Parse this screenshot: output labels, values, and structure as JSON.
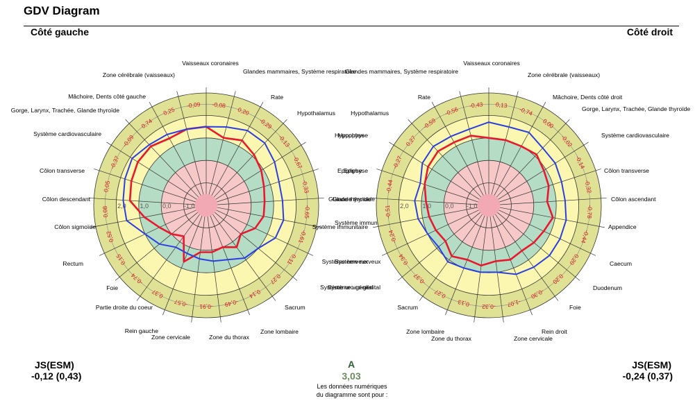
{
  "title": "GDV Diagram",
  "left_side_label": "Côté gauche",
  "right_side_label": "Côté droit",
  "left_stats": {
    "label": "JS(ESM)",
    "value": "-0,12 (0,43)"
  },
  "right_stats": {
    "label": "JS(ESM)",
    "value": "-0,24 (0,37)"
  },
  "center_label": "A",
  "center_value": "3,03",
  "note": [
    "Les données numériques",
    "du diagramme sont pour :"
  ],
  "chart_data": [
    {
      "type": "radar",
      "name": "Côté gauche",
      "rlim": [
        -2,
        3
      ],
      "ring_labels": [
        "2,0",
        "1,0",
        "0,0",
        "-1,0"
      ],
      "band_colors": [
        "#f7c8c8",
        "#b5dcc4",
        "#fbf6b0",
        "#dfe294"
      ],
      "line_colors": [
        "#e8192c",
        "#2b3fe0"
      ],
      "sectors": [
        {
          "label": "Vaisseaux coronaires",
          "value": "-0,08"
        },
        {
          "label": "Glandes mammaires, Système respiratoire",
          "value": "0,20"
        },
        {
          "label": "Rate",
          "value": "-0,29"
        },
        {
          "label": "Hypothalamus",
          "value": "-0,13"
        },
        {
          "label": "Hypophyse",
          "value": "-0,67"
        },
        {
          "label": "Epiphyse",
          "value": "-0,33"
        },
        {
          "label": "Glande thyroïde",
          "value": "-0,65"
        },
        {
          "label": "Système immunitaire",
          "value": "-0,61"
        },
        {
          "label": "Système nerveux",
          "value": "0,11"
        },
        {
          "label": "Système uro-génital",
          "value": "0,27"
        },
        {
          "label": "Sacrum",
          "value": "0,14"
        },
        {
          "label": "Zone lombaire",
          "value": "-0,49"
        },
        {
          "label": "Zone du thorax",
          "value": "-0,91"
        },
        {
          "label": "Zone cervicale",
          "value": "-0,57"
        },
        {
          "label": "Rein gauche",
          "value": "0,37"
        },
        {
          "label": "Partie droite du coeur",
          "value": "-0,74"
        },
        {
          "label": "Foie",
          "value": "0,15"
        },
        {
          "label": "Rectum",
          "value": "0,52"
        },
        {
          "label": "Côlon sigmoïde",
          "value": "0,08"
        },
        {
          "label": "Côlon descendant",
          "value": "0,05"
        },
        {
          "label": "Côlon transverse",
          "value": "-0,37"
        },
        {
          "label": "Système cardiovasculaire",
          "value": "-0,09"
        },
        {
          "label": "Gorge, Larynx, Trachée, Glande thyroïde",
          "value": "0,74"
        },
        {
          "label": "Mâchoire, Dents côté gauche",
          "value": "0,25"
        },
        {
          "label": "Zone cérébrale (vaisseaux)",
          "value": "-0,09"
        }
      ],
      "series": [
        {
          "values": [
            1.5,
            1.1,
            1.3,
            1.1,
            0.9,
            0.7,
            0.6,
            0.6,
            0.4,
            0.0,
            0.3,
            0.0,
            0.1,
            0.1,
            0.7,
            -0.3,
            0.0,
            0.3,
            0.8,
            1.4,
            1.5,
            1.6,
            1.6,
            1.4,
            1.5
          ]
        },
        {
          "values": [
            1.5,
            1.6,
            1.8,
            1.8,
            1.6,
            1.4,
            1.4,
            1.5,
            1.4,
            1.0,
            0.9,
            0.6,
            0.5,
            0.4,
            0.3,
            0.3,
            0.7,
            1.0,
            1.6,
            1.7,
            1.8,
            1.9,
            1.7,
            1.6,
            1.5
          ]
        }
      ]
    },
    {
      "type": "radar",
      "name": "Côté droit",
      "rlim": [
        -2,
        3
      ],
      "ring_labels": [
        "2,0",
        "1,0",
        "0,0",
        "-1,0"
      ],
      "band_colors": [
        "#f7c8c8",
        "#b5dcc4",
        "#fbf6b0",
        "#dfe294"
      ],
      "line_colors": [
        "#e8192c",
        "#2b3fe0"
      ],
      "sectors": [
        {
          "label": "Vaisseaux coronaires",
          "value": "-0,43"
        },
        {
          "label": "Zone cérébrale (vaisseaux)",
          "value": "-0,56"
        },
        {
          "label": "Mâchoire, Dents côté droit",
          "value": "-0,59"
        },
        {
          "label": "Gorge, Larynx, Trachée, Glande thyroïde",
          "value": "0,27"
        },
        {
          "label": "Système cardiovasculaire",
          "value": "-0,27"
        },
        {
          "label": "Côlon transverse",
          "value": "-0,44"
        },
        {
          "label": "Côlon ascendant",
          "value": "-0,51"
        },
        {
          "label": "Appendice",
          "value": "-0,24"
        },
        {
          "label": "Caecum",
          "value": "0,34"
        },
        {
          "label": "Duodenum",
          "value": "-0,37"
        },
        {
          "label": "Foie",
          "value": "0,27"
        },
        {
          "label": "Rein droit",
          "value": "0,13"
        },
        {
          "label": "Zone cervicale",
          "value": "-0,32"
        },
        {
          "label": "Zone du thorax",
          "value": "-1,07"
        },
        {
          "label": "Zone lombaire",
          "value": "-0,30"
        },
        {
          "label": "Sacrum",
          "value": "0,20"
        },
        {
          "label": "Système uro-génital",
          "value": "0,20"
        },
        {
          "label": "Système nerveux",
          "value": "-0,44"
        },
        {
          "label": "Système immunitaire",
          "value": "-0,78"
        },
        {
          "label": "Glande thyroïde",
          "value": "-0,32"
        },
        {
          "label": "Epiphyse",
          "value": "-0,14"
        },
        {
          "label": "Hypophyse",
          "value": "-0,02"
        },
        {
          "label": "Hypothalamus",
          "value": "0,00"
        },
        {
          "label": "Rate",
          "value": "-0,74"
        },
        {
          "label": "Glandes mammaires, Système respiratoire",
          "value": "0,13"
        }
      ],
      "series": [
        {
          "values": [
            1.0,
            1.2,
            1.2,
            1.3,
            1.2,
            1.0,
            0.8,
            0.7,
            0.6,
            0.5,
            0.8,
            0.6,
            0.7,
            0.5,
            0.6,
            0.5,
            0.6,
            0.7,
            0.9,
            0.6,
            0.8,
            0.9,
            1.1,
            1.0,
            1.0
          ]
        },
        {
          "values": [
            1.7,
            1.5,
            1.5,
            1.6,
            1.5,
            1.2,
            1.3,
            1.2,
            1.0,
            0.9,
            1.1,
            1.0,
            1.0,
            1.0,
            1.3,
            1.4,
            1.5,
            1.5,
            1.5,
            1.4,
            1.4,
            1.5,
            1.5,
            1.7,
            1.6
          ]
        }
      ]
    }
  ]
}
